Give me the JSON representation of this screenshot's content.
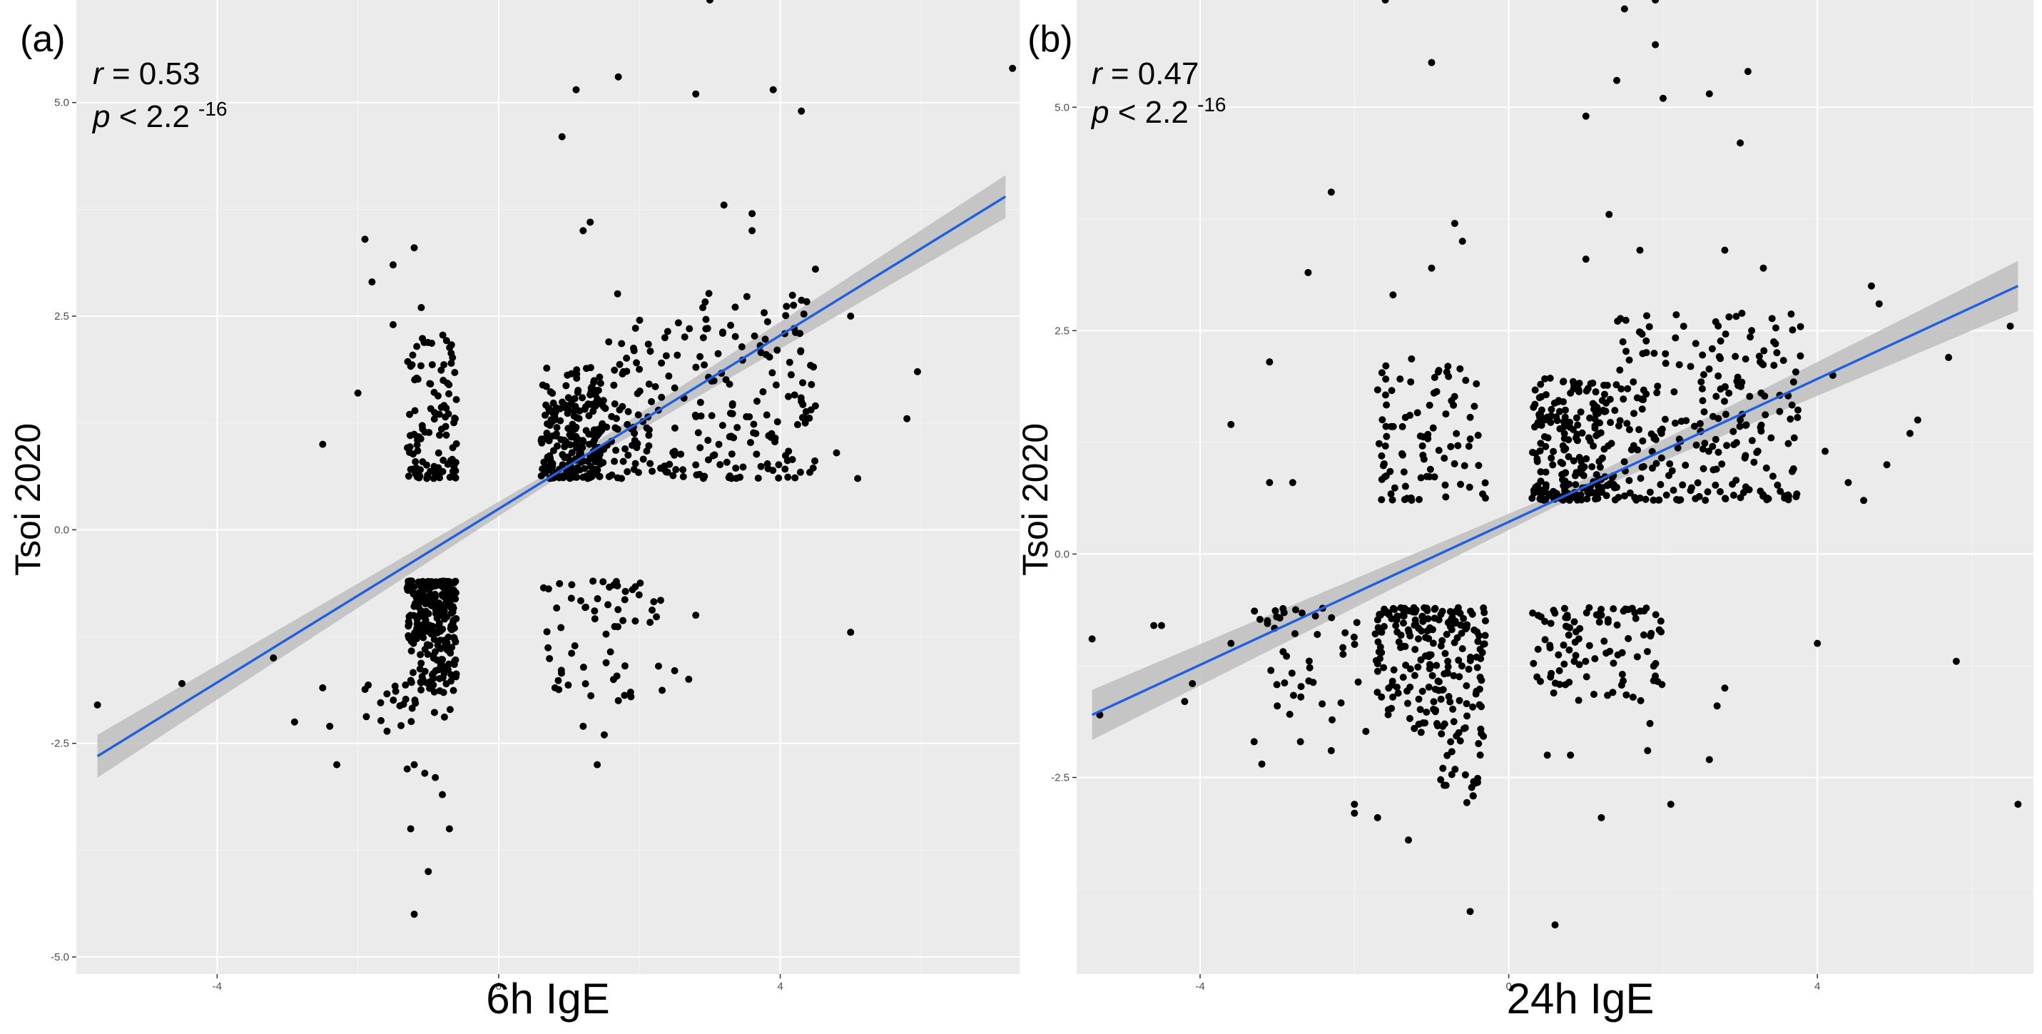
{
  "figure": {
    "colors": {
      "panel_bg": "#EBEBEB",
      "grid_major": "#FFFFFF",
      "grid_minor": "#F5F5F5",
      "points": "#000000",
      "fit_line": "#1F5FE0",
      "ci_band": "#BEBEBE",
      "text": "#000000",
      "tick_text": "#4D4D4D"
    }
  },
  "chart_data": [
    {
      "type": "scatter",
      "panel_label": "(a)",
      "stat_r_label": "r",
      "stat_r_value": " = 0.53",
      "stat_p_label": "p",
      "stat_p_value": " < 2.2 ",
      "stat_p_exponent": "-16",
      "xlabel": "6h IgE",
      "ylabel": "Tsoi 2020",
      "xlim": [
        -6.0,
        7.4
      ],
      "ylim": [
        -5.2,
        6.2
      ],
      "x_ticks": [
        -4,
        0,
        4
      ],
      "x_tick_labels": [
        "-4",
        "0",
        "4"
      ],
      "y_ticks": [
        -5.0,
        -2.5,
        0.0,
        2.5,
        5.0
      ],
      "y_tick_labels": [
        "-5.0",
        "-2.5",
        "0.0",
        "2.5",
        "5.0"
      ],
      "fit": {
        "x": [
          -5.7,
          7.2
        ],
        "y": [
          -2.65,
          3.9
        ],
        "ci_halfwidth_at_ends": 0.25
      },
      "clusters": [
        {
          "x_range": [
            -1.3,
            -0.6
          ],
          "y_range": [
            -1.8,
            -0.6
          ],
          "n": 260,
          "seed": 11
        },
        {
          "x_range": [
            -1.9,
            -0.6
          ],
          "y_range": [
            -2.4,
            -1.8
          ],
          "n": 30,
          "seed": 12
        },
        {
          "x_range": [
            -1.3,
            -0.6
          ],
          "y_range": [
            0.6,
            2.3
          ],
          "n": 110,
          "seed": 13
        },
        {
          "x_range": [
            0.6,
            1.5
          ],
          "y_range": [
            0.6,
            1.9
          ],
          "n": 220,
          "seed": 14
        },
        {
          "x_range": [
            1.5,
            4.5
          ],
          "y_range": [
            0.6,
            2.8
          ],
          "n": 230,
          "seed": 15
        },
        {
          "x_range": [
            0.6,
            2.4
          ],
          "y_range": [
            -2.0,
            -0.6
          ],
          "n": 60,
          "seed": 16
        }
      ],
      "points": [
        [
          -5.7,
          -2.05
        ],
        [
          -4.5,
          -1.8
        ],
        [
          -3.2,
          -1.5
        ],
        [
          -2.9,
          -2.25
        ],
        [
          -2.5,
          -1.85
        ],
        [
          -2.4,
          -2.3
        ],
        [
          -2.3,
          -2.75
        ],
        [
          -2.5,
          1.0
        ],
        [
          -1.9,
          3.4
        ],
        [
          -1.8,
          2.9
        ],
        [
          -1.5,
          3.1
        ],
        [
          -1.2,
          3.3
        ],
        [
          -1.1,
          2.6
        ],
        [
          -1.5,
          2.4
        ],
        [
          -2.0,
          1.6
        ],
        [
          -1.3,
          -2.8
        ],
        [
          -1.2,
          -2.75
        ],
        [
          -1.05,
          -2.85
        ],
        [
          -0.9,
          -2.9
        ],
        [
          -0.8,
          -3.1
        ],
        [
          -1.25,
          -3.5
        ],
        [
          -0.7,
          -3.5
        ],
        [
          -1.0,
          -4.0
        ],
        [
          -1.2,
          -4.5
        ],
        [
          0.9,
          4.6
        ],
        [
          1.1,
          5.15
        ],
        [
          1.7,
          5.3
        ],
        [
          2.8,
          5.1
        ],
        [
          3.0,
          6.2
        ],
        [
          3.9,
          5.15
        ],
        [
          4.3,
          4.9
        ],
        [
          7.3,
          5.4
        ],
        [
          3.2,
          3.8
        ],
        [
          3.6,
          3.7
        ],
        [
          3.6,
          3.5
        ],
        [
          4.5,
          3.05
        ],
        [
          1.3,
          3.6
        ],
        [
          1.2,
          3.5
        ],
        [
          2.9,
          2.6
        ],
        [
          3.8,
          2.05
        ],
        [
          4.3,
          1.5
        ],
        [
          4.5,
          1.45
        ],
        [
          4.8,
          0.9
        ],
        [
          5.1,
          0.6
        ],
        [
          5.8,
          1.3
        ],
        [
          5.95,
          1.85
        ],
        [
          5.0,
          2.5
        ],
        [
          5.0,
          -1.2
        ],
        [
          2.5,
          -1.65
        ],
        [
          2.7,
          -1.75
        ],
        [
          2.8,
          -1.0
        ],
        [
          1.4,
          -2.75
        ],
        [
          1.7,
          -2.0
        ],
        [
          1.2,
          -2.3
        ],
        [
          1.5,
          -2.4
        ],
        [
          0.8,
          -1.85
        ]
      ]
    },
    {
      "type": "scatter",
      "panel_label": "(b)",
      "stat_r_label": "r",
      "stat_r_value": " = 0.47",
      "stat_p_label": "p",
      "stat_p_value": " < 2.2 ",
      "stat_p_exponent": "-16",
      "xlabel": "24h IgE",
      "ylabel": "Tsoi 2020",
      "xlim": [
        -5.6,
        6.8
      ],
      "ylim": [
        -4.7,
        6.2
      ],
      "x_ticks": [
        -4,
        0,
        4
      ],
      "x_tick_labels": [
        "-4",
        "0",
        "4"
      ],
      "y_ticks": [
        -2.5,
        0.0,
        2.5,
        5.0
      ],
      "y_tick_labels": [
        "-2.5",
        "0.0",
        "2.5",
        "5.0"
      ],
      "fit": {
        "x": [
          -5.4,
          6.6
        ],
        "y": [
          -1.8,
          3.0
        ],
        "ci_halfwidth_at_ends": 0.28
      },
      "clusters": [
        {
          "x_range": [
            -1.7,
            -0.3
          ],
          "y_range": [
            -2.0,
            -0.6
          ],
          "n": 210,
          "seed": 21
        },
        {
          "x_range": [
            -0.9,
            -0.3
          ],
          "y_range": [
            -2.8,
            -2.0
          ],
          "n": 25,
          "seed": 22
        },
        {
          "x_range": [
            -1.7,
            -0.3
          ],
          "y_range": [
            0.6,
            2.2
          ],
          "n": 90,
          "seed": 23
        },
        {
          "x_range": [
            0.3,
            1.4
          ],
          "y_range": [
            0.6,
            2.0
          ],
          "n": 220,
          "seed": 24
        },
        {
          "x_range": [
            1.4,
            3.8
          ],
          "y_range": [
            0.6,
            2.7
          ],
          "n": 230,
          "seed": 25
        },
        {
          "x_range": [
            0.3,
            2.0
          ],
          "y_range": [
            -1.9,
            -0.6
          ],
          "n": 100,
          "seed": 26
        },
        {
          "x_range": [
            -3.3,
            -1.7
          ],
          "y_range": [
            -2.0,
            -0.6
          ],
          "n": 45,
          "seed": 27
        }
      ],
      "points": [
        [
          -5.4,
          -0.95
        ],
        [
          -5.3,
          -1.8
        ],
        [
          -4.6,
          -0.8
        ],
        [
          -4.5,
          -0.8
        ],
        [
          -4.2,
          -1.65
        ],
        [
          -4.1,
          -1.45
        ],
        [
          -3.6,
          -1.0
        ],
        [
          -3.3,
          -2.1
        ],
        [
          -3.2,
          -2.35
        ],
        [
          -3.0,
          -1.7
        ],
        [
          -2.7,
          -2.1
        ],
        [
          -2.3,
          -2.2
        ],
        [
          -2.0,
          -2.8
        ],
        [
          -2.0,
          -2.9
        ],
        [
          -1.7,
          -2.95
        ],
        [
          -1.3,
          -3.2
        ],
        [
          -3.6,
          1.45
        ],
        [
          -3.1,
          2.15
        ],
        [
          -2.6,
          3.15
        ],
        [
          -2.3,
          4.05
        ],
        [
          -1.6,
          6.2
        ],
        [
          -1.0,
          5.5
        ],
        [
          -0.7,
          3.7
        ],
        [
          -0.6,
          3.5
        ],
        [
          -1.5,
          2.9
        ],
        [
          -1.0,
          3.2
        ],
        [
          -2.8,
          0.8
        ],
        [
          -3.1,
          0.8
        ],
        [
          -0.5,
          -4.0
        ],
        [
          0.6,
          -4.15
        ],
        [
          0.5,
          -2.25
        ],
        [
          0.8,
          -2.25
        ],
        [
          1.2,
          -2.95
        ],
        [
          1.8,
          -2.2
        ],
        [
          2.1,
          -2.8
        ],
        [
          2.6,
          -2.3
        ],
        [
          1.0,
          4.9
        ],
        [
          1.4,
          5.3
        ],
        [
          1.5,
          6.1
        ],
        [
          1.9,
          6.2
        ],
        [
          1.9,
          5.7
        ],
        [
          2.0,
          5.1
        ],
        [
          2.6,
          5.15
        ],
        [
          3.0,
          4.6
        ],
        [
          3.1,
          5.4
        ],
        [
          1.0,
          3.3
        ],
        [
          1.3,
          3.8
        ],
        [
          1.7,
          3.4
        ],
        [
          2.8,
          3.4
        ],
        [
          3.3,
          3.2
        ],
        [
          4.2,
          2.0
        ],
        [
          4.7,
          3.0
        ],
        [
          4.8,
          2.8
        ],
        [
          5.7,
          2.2
        ],
        [
          6.5,
          2.55
        ],
        [
          6.6,
          -2.8
        ],
        [
          5.8,
          -1.2
        ],
        [
          4.0,
          -1.0
        ],
        [
          2.8,
          -1.5
        ],
        [
          2.7,
          -1.7
        ],
        [
          3.0,
          1.5
        ],
        [
          3.4,
          1.3
        ],
        [
          3.7,
          1.3
        ],
        [
          4.1,
          1.15
        ],
        [
          4.4,
          0.8
        ],
        [
          4.6,
          0.6
        ],
        [
          4.9,
          1.0
        ],
        [
          5.2,
          1.35
        ],
        [
          5.3,
          1.5
        ]
      ]
    }
  ]
}
